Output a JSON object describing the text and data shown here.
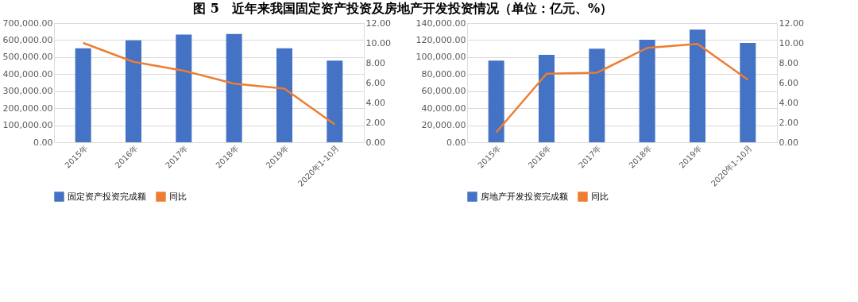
{
  "chart_data": [
    {
      "type": "bar",
      "title": "图 5　近年来我国固定资产投资及房地产开发投资情况（单位：亿元、%）",
      "categories": [
        "2015年",
        "2016年",
        "2017年",
        "2018年",
        "2019年",
        "2020年1-10月"
      ],
      "series": [
        {
          "name": "固定资产投资完成额",
          "type": "bar",
          "color": "#4472c4",
          "values": [
            552000,
            598000,
            632000,
            636000,
            552000,
            480000
          ]
        },
        {
          "name": "同比",
          "type": "line",
          "axis": "y2",
          "color": "#ed7d31",
          "values": [
            10.0,
            8.1,
            7.2,
            5.9,
            5.4,
            1.8
          ]
        }
      ],
      "ylim": [
        0,
        700000
      ],
      "yticks": [
        {
          "value": 0,
          "label": "0.00"
        },
        {
          "value": 100000,
          "label": "100,000.00"
        },
        {
          "value": 200000,
          "label": "200,000.00"
        },
        {
          "value": 300000,
          "label": "300,000.00"
        },
        {
          "value": 400000,
          "label": "400,000.00"
        },
        {
          "value": 500000,
          "label": "500,000.00"
        },
        {
          "value": 600000,
          "label": "600,000.00"
        },
        {
          "value": 700000,
          "label": "700,000.00"
        }
      ],
      "y2lim": [
        0,
        12
      ],
      "y2ticks": [
        {
          "value": 0,
          "label": "0.00"
        },
        {
          "value": 2,
          "label": "2.00"
        },
        {
          "value": 4,
          "label": "4.00"
        },
        {
          "value": 6,
          "label": "6.00"
        },
        {
          "value": 8,
          "label": "8.00"
        },
        {
          "value": 10,
          "label": "10.00"
        },
        {
          "value": 12,
          "label": "12.00"
        }
      ],
      "grid": "y",
      "legend": "bottom"
    },
    {
      "type": "bar",
      "categories": [
        "2015年",
        "2016年",
        "2017年",
        "2018年",
        "2019年",
        "2020年1-10月"
      ],
      "series": [
        {
          "name": "房地产开发投资完成额",
          "type": "bar",
          "color": "#4472c4",
          "values": [
            96000,
            102600,
            109800,
            120300,
            132200,
            116600
          ]
        },
        {
          "name": "同比",
          "type": "line",
          "axis": "y2",
          "color": "#ed7d31",
          "values": [
            1.0,
            6.9,
            7.0,
            9.5,
            9.9,
            6.3
          ]
        }
      ],
      "ylim": [
        0,
        140000
      ],
      "yticks": [
        {
          "value": 0,
          "label": "0.00"
        },
        {
          "value": 20000,
          "label": "20,000.00"
        },
        {
          "value": 40000,
          "label": "40,000.00"
        },
        {
          "value": 60000,
          "label": "60,000.00"
        },
        {
          "value": 80000,
          "label": "80,000.00"
        },
        {
          "value": 100000,
          "label": "100,000.00"
        },
        {
          "value": 120000,
          "label": "120,000.00"
        },
        {
          "value": 140000,
          "label": "140,000.00"
        }
      ],
      "y2lim": [
        0,
        12
      ],
      "y2ticks": [
        {
          "value": 0,
          "label": "0.00"
        },
        {
          "value": 2,
          "label": "2.00"
        },
        {
          "value": 4,
          "label": "4.00"
        },
        {
          "value": 6,
          "label": "6.00"
        },
        {
          "value": 8,
          "label": "8.00"
        },
        {
          "value": 10,
          "label": "10.00"
        },
        {
          "value": 12,
          "label": "12.00"
        }
      ],
      "grid": "y",
      "legend": "bottom"
    }
  ]
}
